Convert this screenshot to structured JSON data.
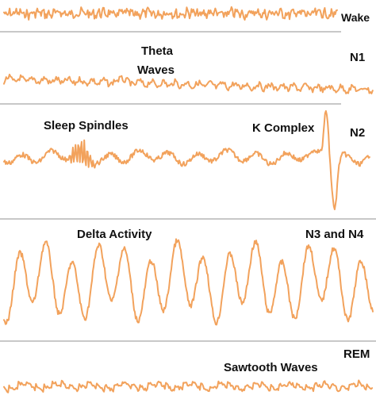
{
  "wave_color": "#F2A25C",
  "divider_color": "#B5B5B5",
  "stages": {
    "wake": {
      "label": "Wake"
    },
    "n1": {
      "label": "N1",
      "annotation_line1": "Theta",
      "annotation_line2": "Waves"
    },
    "n2": {
      "label": "N2",
      "annotation_spindles": "Sleep Spindles",
      "annotation_kcomplex": "K Complex"
    },
    "n3n4": {
      "label": "N3 and N4",
      "annotation": "Delta Activity"
    },
    "rem": {
      "label": "REM",
      "annotation": "Sawtooth Waves"
    }
  }
}
